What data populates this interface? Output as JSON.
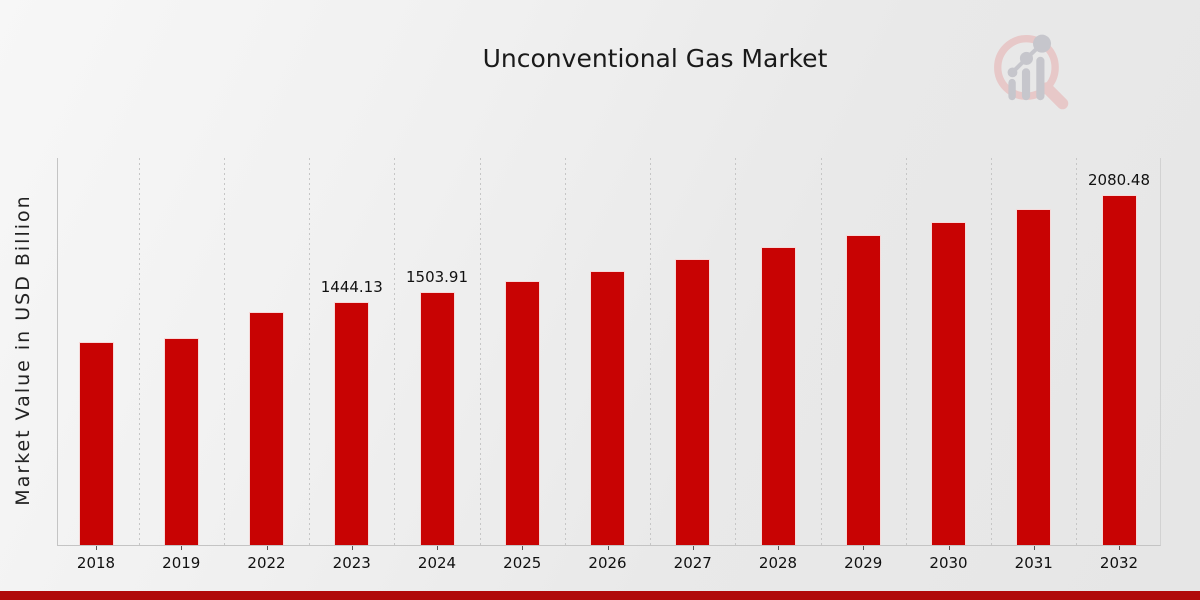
{
  "page": {
    "title": "Unconventional Gas Market",
    "footer_color": "#b00a0a"
  },
  "watermark": {
    "icon": "magnifier-bar-chart-logo",
    "ring_color": "#e7c8c8",
    "glyph_color": "#c6c6cc"
  },
  "chart_data": {
    "type": "bar",
    "title": "Unconventional Gas Market",
    "xlabel": "",
    "ylabel": "Market Value in USD Billion",
    "categories": [
      "2018",
      "2019",
      "2022",
      "2023",
      "2024",
      "2025",
      "2026",
      "2027",
      "2028",
      "2029",
      "2030",
      "2031",
      "2032"
    ],
    "values": [
      1207,
      1230,
      1386.8,
      1444.13,
      1503.91,
      1566.2,
      1631,
      1698.5,
      1768.8,
      1842.1,
      1918.3,
      1997.7,
      2080.48
    ],
    "data_labels": [
      {
        "category": "2023",
        "text": "1444.13"
      },
      {
        "category": "2024",
        "text": "1503.91"
      },
      {
        "category": "2032",
        "text": "2080.48"
      }
    ],
    "ylim": [
      0,
      2300
    ],
    "bar_color": "#c80303",
    "grid": "vertical-dashed-between-categories",
    "legend": "none",
    "y_tick_labels_visible": false
  }
}
